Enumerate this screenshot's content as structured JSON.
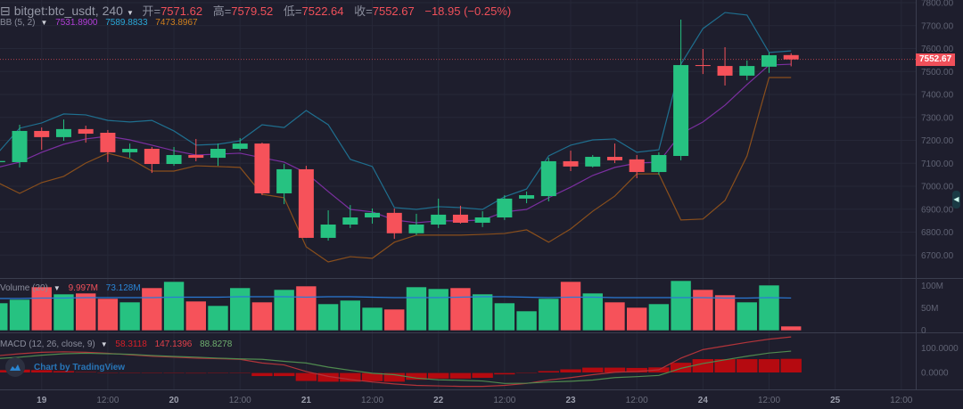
{
  "header": {
    "symbol": "bitget:btc_usdt, 240",
    "collapse_icon": "square-minus-icon",
    "open_label": "开=",
    "open": "7571.62",
    "high_label": "高=",
    "high": "7579.52",
    "low_label": "低=",
    "low": "7522.64",
    "close_label": "收=",
    "close": "7552.67",
    "change": "−18.95 (−0.25%)"
  },
  "bb_legend": {
    "label": "BB (5, 2)",
    "basis": "7531.8900",
    "upper": "7589.8833",
    "lower": "7473.8967"
  },
  "volume_legend": {
    "label": "Volume (20)",
    "value": "9.997M",
    "ma": "73.128M"
  },
  "macd_legend": {
    "label": "MACD (12, 26, close, 9)",
    "hist": "58.3118",
    "macd": "147.1396",
    "signal": "88.8278"
  },
  "last_price_tag": "7552.67",
  "watermark": "Chart by TradingView",
  "colors": {
    "up": "#26c281",
    "down": "#f6525a",
    "bb_upper": "#1f6f8f",
    "bb_basis": "#7b2fa0",
    "bb_lower": "#8a4f1c",
    "vol_ma": "#2a7ad6",
    "macd": "#b2343a",
    "signal": "#4f8a4f",
    "hist": "#b50a10",
    "background": "#1e1e2d"
  },
  "price_axis": [
    "7800.00",
    "7700.00",
    "7600.00",
    "7500.00",
    "7400.00",
    "7300.00",
    "7200.00",
    "7100.00",
    "7000.00",
    "6900.00",
    "6800.00",
    "6700.00"
  ],
  "volume_axis": [
    "100M",
    "50M",
    "0"
  ],
  "macd_axis": [
    "100.0000",
    "0.0000"
  ],
  "time_axis": [
    {
      "label": "19",
      "index": 2
    },
    {
      "label": "12:00",
      "index": 5
    },
    {
      "label": "20",
      "index": 8
    },
    {
      "label": "12:00",
      "index": 11
    },
    {
      "label": "21",
      "index": 14
    },
    {
      "label": "12:00",
      "index": 17
    },
    {
      "label": "22",
      "index": 20
    },
    {
      "label": "12:00",
      "index": 23
    },
    {
      "label": "23",
      "index": 26
    },
    {
      "label": "12:00",
      "index": 29
    },
    {
      "label": "24",
      "index": 32
    },
    {
      "label": "12:00",
      "index": 35
    },
    {
      "label": "25",
      "index": 38
    },
    {
      "label": "12:00",
      "index": 41
    }
  ],
  "chart_data": {
    "type": "candlestick",
    "interval_minutes": 240,
    "ylim": [
      6650,
      7810
    ],
    "ohlc": [
      [
        7105,
        7118,
        7095,
        7110
      ],
      [
        7105,
        7268,
        7082,
        7241
      ],
      [
        7241,
        7256,
        7159,
        7214
      ],
      [
        7214,
        7291,
        7198,
        7249
      ],
      [
        7249,
        7264,
        7190,
        7229
      ],
      [
        7233,
        7245,
        7105,
        7148
      ],
      [
        7148,
        7186,
        7124,
        7163
      ],
      [
        7163,
        7171,
        7058,
        7097
      ],
      [
        7097,
        7171,
        7089,
        7136
      ],
      [
        7136,
        7206,
        7109,
        7124
      ],
      [
        7124,
        7186,
        7089,
        7163
      ],
      [
        7163,
        7210,
        7155,
        7186
      ],
      [
        7186,
        7190,
        6961,
        6969
      ],
      [
        6969,
        7097,
        6922,
        7074
      ],
      [
        7074,
        7089,
        6775,
        6775
      ],
      [
        6775,
        6895,
        6763,
        6833
      ],
      [
        6833,
        6918,
        6818,
        6864
      ],
      [
        6864,
        6903,
        6837,
        6884
      ],
      [
        6884,
        6903,
        6771,
        6795
      ],
      [
        6795,
        6880,
        6787,
        6833
      ],
      [
        6833,
        6946,
        6818,
        6876
      ],
      [
        6876,
        6915,
        6837,
        6841
      ],
      [
        6841,
        6891,
        6822,
        6864
      ],
      [
        6864,
        6961,
        6853,
        6946
      ],
      [
        6946,
        6977,
        6926,
        6961
      ],
      [
        6957,
        7124,
        6934,
        7109
      ],
      [
        7109,
        7155,
        7066,
        7086
      ],
      [
        7086,
        7136,
        7082,
        7128
      ],
      [
        7128,
        7186,
        7101,
        7113
      ],
      [
        7117,
        7136,
        7035,
        7062
      ],
      [
        7062,
        7148,
        7050,
        7136
      ],
      [
        7132,
        7726,
        7113,
        7528
      ],
      [
        7528,
        7598,
        7489,
        7524
      ],
      [
        7524,
        7606,
        7439,
        7482
      ],
      [
        7482,
        7548,
        7462,
        7524
      ],
      [
        7521,
        7583,
        7494,
        7571
      ],
      [
        7571.62,
        7579.52,
        7522.64,
        7552.67
      ]
    ],
    "bb_upper": [
      7144,
      7253,
      7276,
      7315,
      7311,
      7287,
      7280,
      7287,
      7241,
      7179,
      7183,
      7198,
      7268,
      7256,
      7330,
      7268,
      7117,
      7086,
      6907,
      6899,
      6911,
      6907,
      6899,
      6954,
      6988,
      7132,
      7179,
      7202,
      7206,
      7148,
      7159,
      7532,
      7687,
      7757,
      7746,
      7583,
      7589.88
    ],
    "bb_basis": [
      7082,
      7105,
      7148,
      7183,
      7206,
      7218,
      7202,
      7179,
      7155,
      7136,
      7140,
      7144,
      7124,
      7105,
      7058,
      6977,
      6899,
      6888,
      6853,
      6841,
      6849,
      6849,
      6853,
      6888,
      6899,
      6950,
      6996,
      7047,
      7082,
      7101,
      7105,
      7229,
      7280,
      7353,
      7443,
      7528,
      7531.89
    ],
    "bb_lower": [
      7016,
      6969,
      7016,
      7043,
      7101,
      7144,
      7120,
      7066,
      7066,
      7089,
      7086,
      7082,
      6965,
      6950,
      6736,
      6670,
      6693,
      6686,
      6756,
      6787,
      6787,
      6787,
      6790,
      6794,
      6810,
      6756,
      6814,
      6891,
      6957,
      7054,
      7054,
      6853,
      6857,
      6938,
      7132,
      7474,
      7473.9
    ],
    "volume_m": [
      62,
      70,
      98,
      82,
      84,
      72,
      64,
      96,
      110,
      66,
      56,
      96,
      64,
      92,
      100,
      60,
      68,
      52,
      48,
      98,
      94,
      96,
      82,
      62,
      44,
      72,
      110,
      84,
      64,
      52,
      60,
      112,
      92,
      80,
      64,
      102,
      9.997
    ],
    "volume_ma_m": [
      72,
      72,
      73,
      73,
      74,
      74,
      74,
      74,
      75,
      75,
      75,
      76,
      76,
      76,
      75,
      76,
      76,
      75,
      74,
      74,
      74,
      75,
      76,
      76,
      75,
      74,
      75,
      75,
      74,
      74,
      74,
      74,
      74,
      73,
      73,
      74,
      73.128
    ],
    "macd": [
      70,
      78,
      84,
      86,
      84,
      80,
      74,
      68,
      64,
      60,
      58,
      55,
      40,
      32,
      5,
      -15,
      -28,
      -38,
      -46,
      -52,
      -54,
      -56,
      -56,
      -52,
      -44,
      -30,
      -20,
      -8,
      2,
      5,
      12,
      60,
      95,
      110,
      125,
      138,
      147.14
    ],
    "signal": [
      58,
      64,
      72,
      78,
      80,
      78,
      76,
      71,
      67,
      64,
      60,
      57,
      55,
      47,
      40,
      23,
      10,
      -2,
      -8,
      -22,
      -29,
      -31,
      -34,
      -44,
      -43,
      -38,
      -35,
      -30,
      -20,
      -16,
      -11,
      18,
      38,
      53,
      68,
      81,
      88.83
    ],
    "histogram": [
      12,
      14,
      12,
      8,
      4,
      2,
      -2,
      -3,
      -3,
      -4,
      -2,
      -2,
      -15,
      -15,
      -35,
      -38,
      -38,
      -36,
      -38,
      -30,
      -25,
      -25,
      -22,
      -8,
      -1,
      8,
      15,
      22,
      22,
      21,
      23,
      42,
      57,
      57,
      57,
      57,
      58.31
    ]
  }
}
